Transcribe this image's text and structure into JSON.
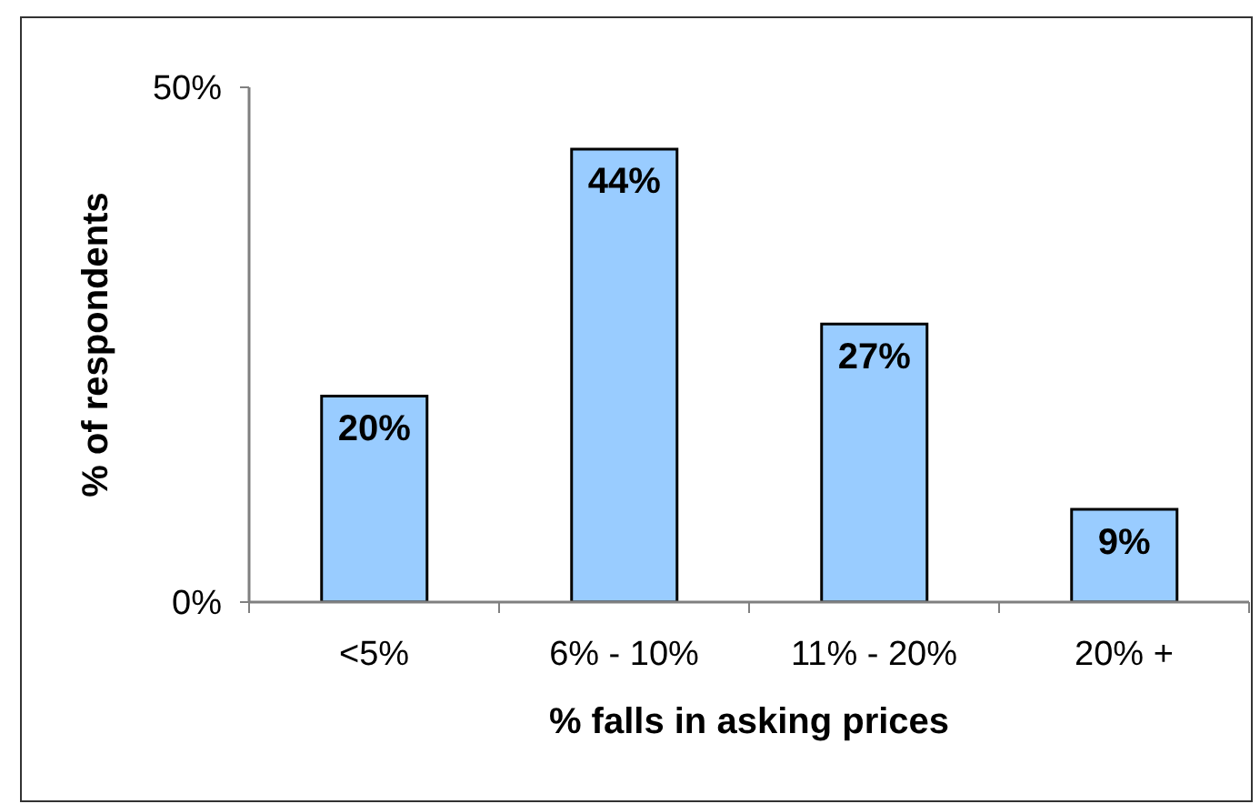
{
  "chart_data": {
    "type": "bar",
    "xlabel": "% falls in asking prices",
    "ylabel": "% of respondents",
    "categories": [
      "<5%",
      "6% - 10%",
      "11% - 20%",
      "20% +"
    ],
    "values": [
      20,
      44,
      27,
      9
    ],
    "color": "#99ccff",
    "value_labels": [
      "20%",
      "44%",
      "27%",
      "9%"
    ],
    "ylim": [
      0,
      50
    ],
    "yticks": [
      {
        "value": 0,
        "label": "0%"
      },
      {
        "value": 50,
        "label": "50%"
      }
    ]
  }
}
